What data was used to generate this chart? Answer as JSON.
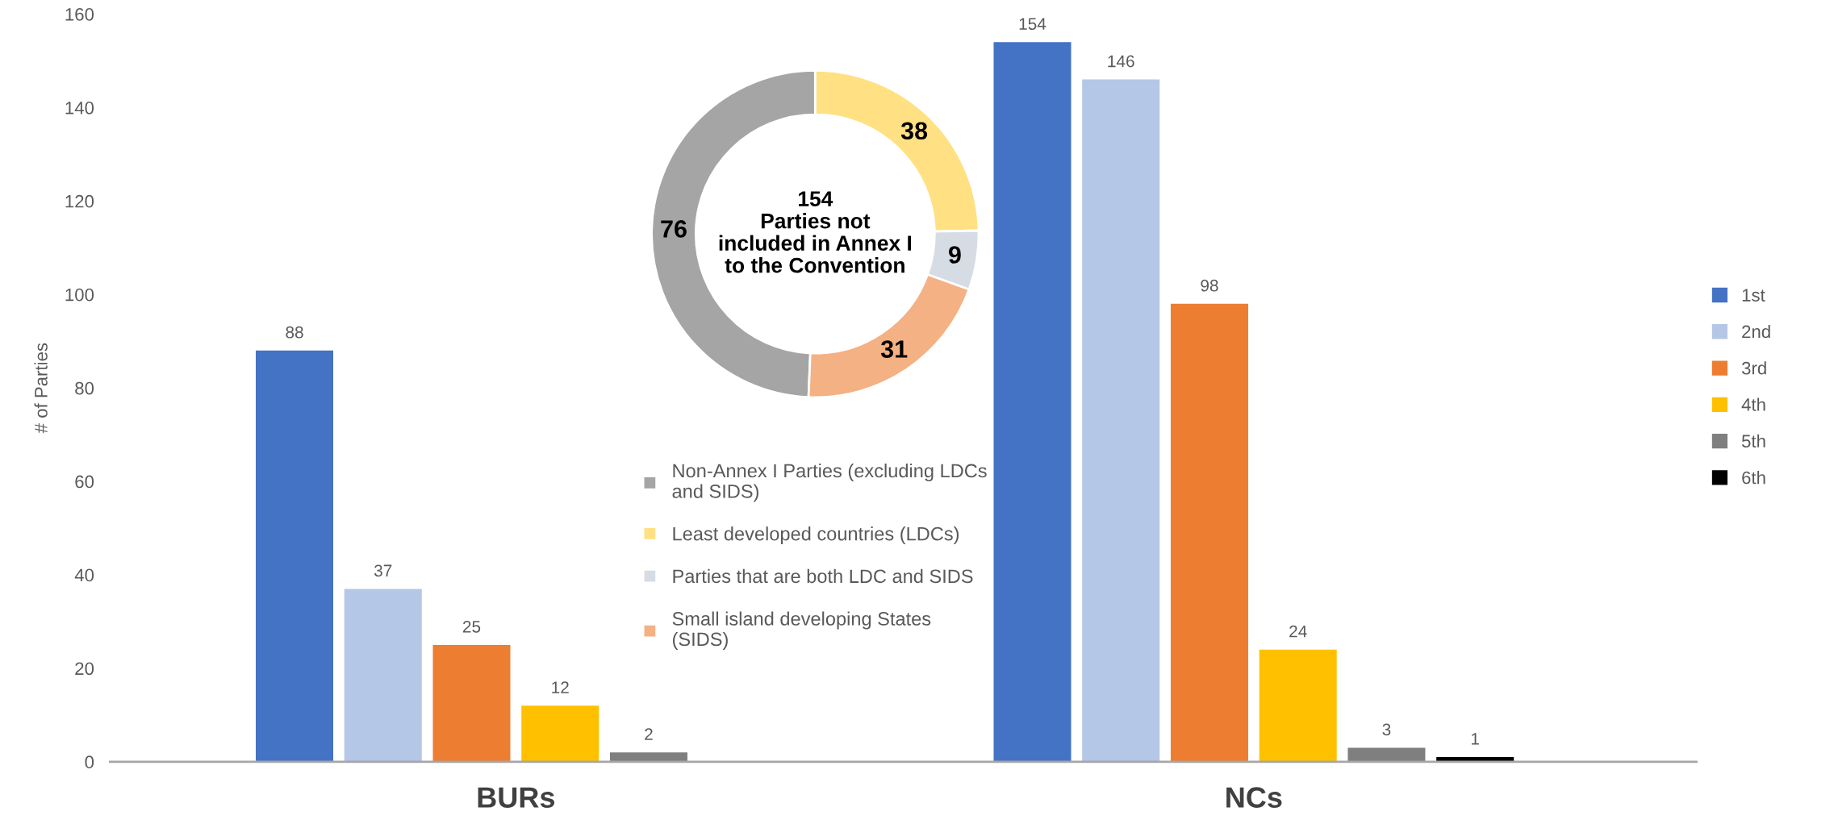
{
  "chart_data": [
    {
      "type": "bar",
      "ylabel": "# of Parties",
      "categories": [
        "BURs",
        "NCs"
      ],
      "ylim": [
        0,
        160
      ],
      "yticks": [
        0,
        20,
        40,
        60,
        80,
        100,
        120,
        140,
        160
      ],
      "grid": false,
      "legend": "right",
      "data_labels": true,
      "series": [
        {
          "name": "1st",
          "color": "#4472c4",
          "values": [
            88,
            154
          ]
        },
        {
          "name": "2nd",
          "color": "#b4c7e7",
          "values": [
            37,
            146
          ]
        },
        {
          "name": "3rd",
          "color": "#ed7d31",
          "values": [
            25,
            98
          ]
        },
        {
          "name": "4th",
          "color": "#ffc000",
          "values": [
            12,
            24
          ]
        },
        {
          "name": "5th",
          "color": "#7f7f7f",
          "values": [
            2,
            3
          ]
        },
        {
          "name": "6th",
          "color": "#000000",
          "values": [
            null,
            1
          ]
        }
      ]
    },
    {
      "type": "donut",
      "categories": [
        "Non-Annex I Parties (excluding LDCs and SIDS)",
        "Least developed countries (LDCs)",
        "Parties that are both LDC and SIDS",
        "Small island developing States (SIDS)"
      ],
      "values": [
        76,
        38,
        9,
        31
      ],
      "colors": [
        "#a5a5a5",
        "#ffe083",
        "#d6dce4",
        "#f4b183"
      ],
      "data_labels": true,
      "legend": "bottom",
      "annotations": [
        "154\nParties not\nincluded in Annex I\nto the Convention"
      ]
    }
  ]
}
